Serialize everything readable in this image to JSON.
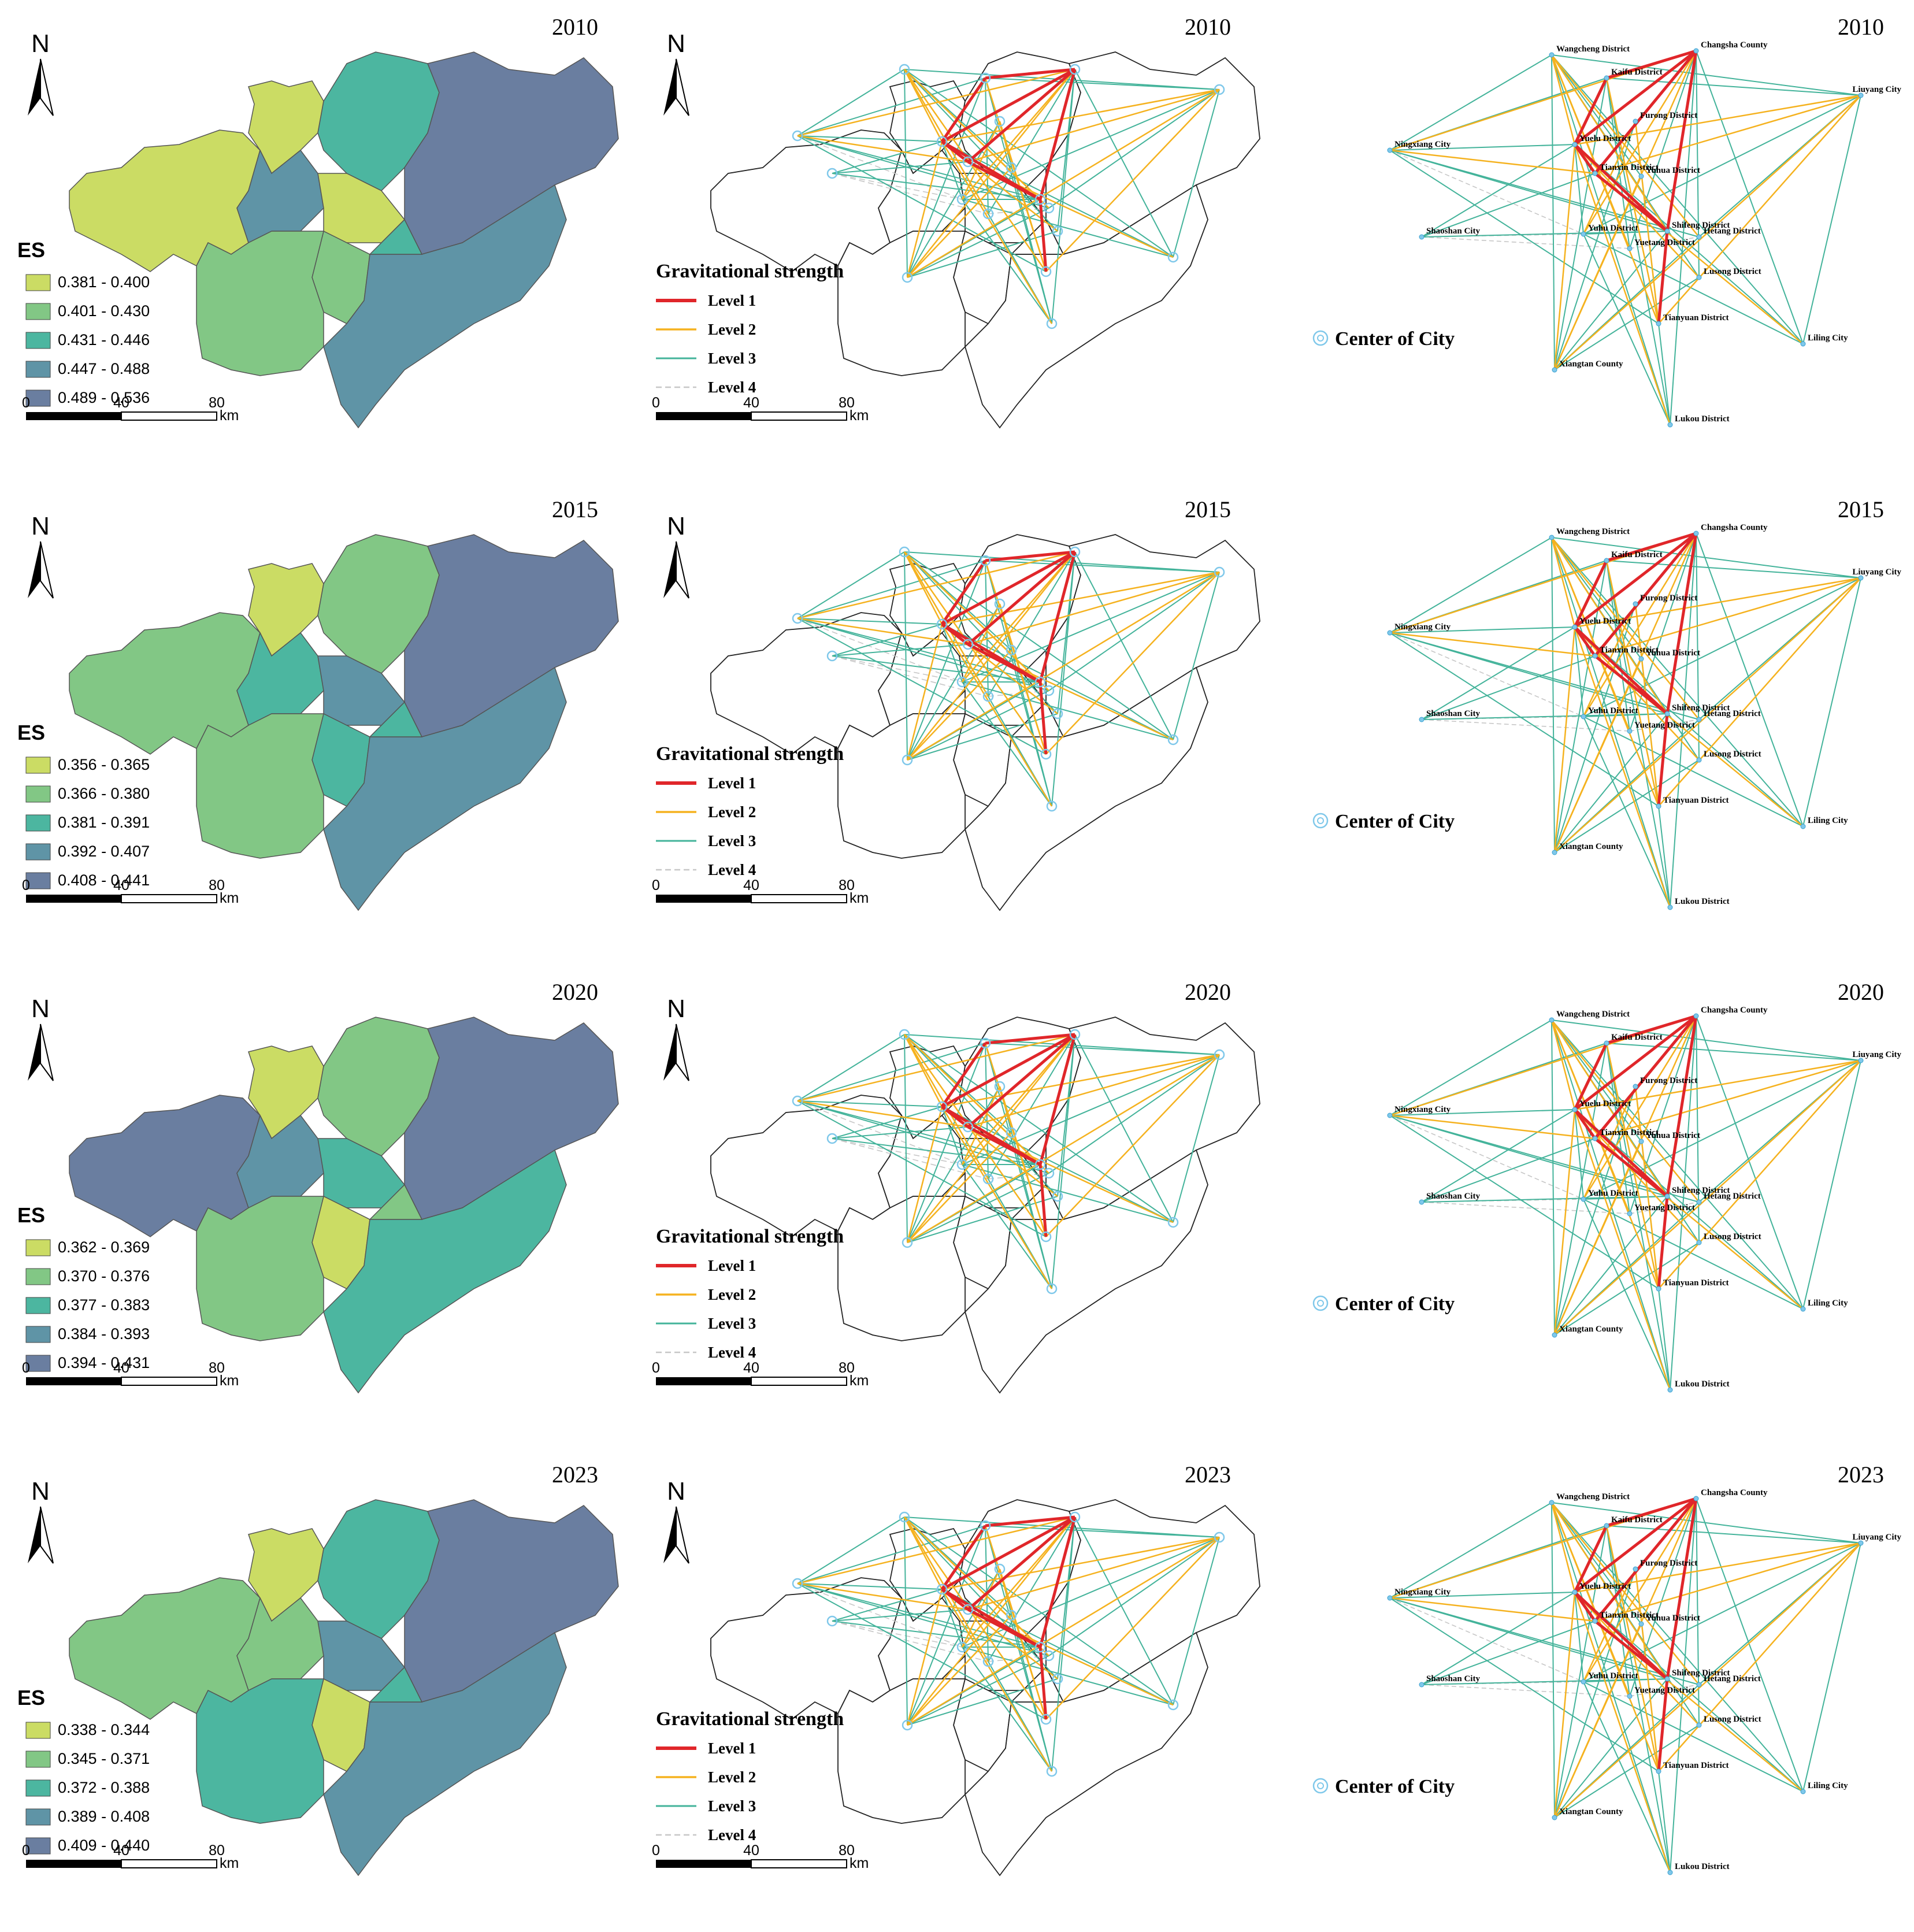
{
  "rows": [
    {
      "year": "2010",
      "es_label": "ES",
      "es_classes": [
        "0.381 - 0.400",
        "0.401 - 0.430",
        "0.431 - 0.446",
        "0.447 - 0.488",
        "0.489 - 0.536"
      ]
    },
    {
      "year": "2015",
      "es_label": "ES",
      "es_classes": [
        "0.356 - 0.365",
        "0.366 - 0.380",
        "0.381 - 0.391",
        "0.392 - 0.407",
        "0.408 - 0.441"
      ]
    },
    {
      "year": "2020",
      "es_label": "ES",
      "es_classes": [
        "0.362 - 0.369",
        "0.370 - 0.376",
        "0.377 - 0.383",
        "0.384 - 0.393",
        "0.394 - 0.431"
      ]
    },
    {
      "year": "2023",
      "es_label": "ES",
      "es_classes": [
        "0.338 - 0.344",
        "0.345 - 0.371",
        "0.372 - 0.388",
        "0.389 - 0.408",
        "0.409 - 0.440"
      ]
    }
  ],
  "north_label": "N",
  "scale": {
    "zero": "0",
    "mid": "40",
    "max": "80",
    "unit": "km"
  },
  "grav_legend": {
    "title": "Gravitational strength",
    "levels": [
      "Level 1",
      "Level 2",
      "Level 3",
      "Level 4"
    ]
  },
  "center_label": "Center of City",
  "nodes": [
    "Wangcheng District",
    "Changsha County",
    "Kaifu District",
    "Liuyang City",
    "Furong District",
    "Ningxiang City",
    "Yuelu District",
    "Tianxin District",
    "Yuhua District",
    "Shaoshan City",
    "Yuhu District",
    "Shifeng District",
    "Hetang District",
    "Yuetang District",
    "Lusong District",
    "Tianyuan District",
    "Liling City",
    "Xiangtan County",
    "Lukou District"
  ],
  "colors": {
    "es": [
      "#cbdc64",
      "#82c785",
      "#4cb6a0",
      "#5f94a6",
      "#6a7ea0"
    ],
    "level1": "#e0262a",
    "level2": "#f5b21f",
    "level3": "#43b39a",
    "level4": "#c7c7c7",
    "node": "#7fc8ea"
  }
}
